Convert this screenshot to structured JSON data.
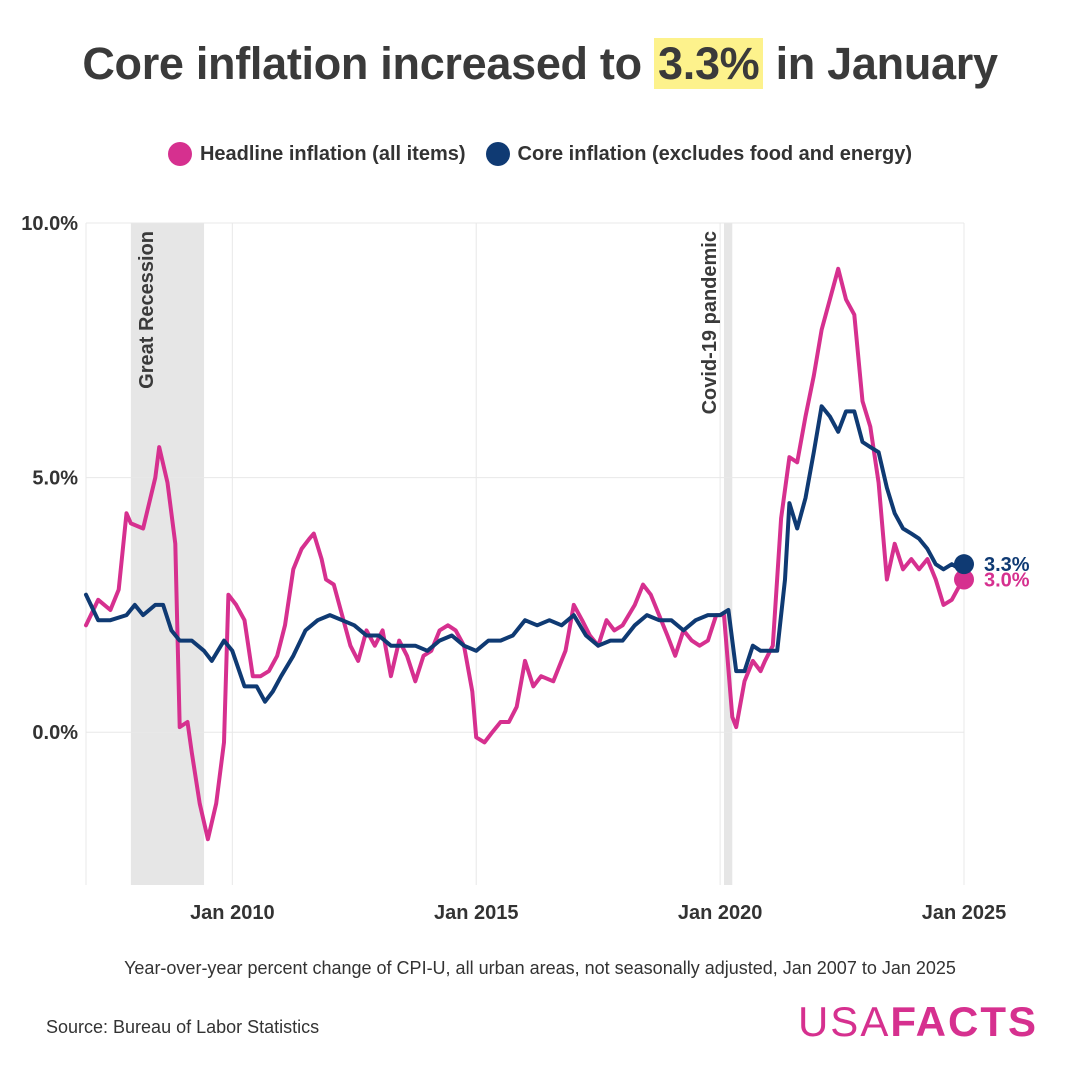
{
  "header": {
    "title_prefix": "Core inflation increased to",
    "title_highlight": "3.3%",
    "title_suffix": "in January"
  },
  "legend": {
    "headline_label": "Headline inflation (all items)",
    "core_label": "Core inflation (excludes food and energy)"
  },
  "colors": {
    "headline": "#d6308f",
    "core": "#0f3a73",
    "recession_band": "#e6e6e6",
    "grid": "#e8e8e8",
    "highlight": "#fdf28c"
  },
  "chart_data": {
    "type": "line",
    "title": "Core inflation increased to 3.3% in January",
    "xlabel": "",
    "ylabel": "",
    "x_range": [
      2007.0,
      2025.0
    ],
    "ylim": [
      -3.0,
      10.0
    ],
    "y_ticks": [
      0,
      5,
      10
    ],
    "y_tick_labels": [
      "0.0%",
      "5.0%",
      "10.0%"
    ],
    "x_ticks": [
      2010,
      2015,
      2020,
      2025
    ],
    "x_tick_labels": [
      "Jan 2010",
      "Jan 2015",
      "Jan 2020",
      "Jan 2025"
    ],
    "shaded_periods": [
      {
        "label": "Great Recession",
        "start": 2007.92,
        "end": 2009.42
      },
      {
        "label": "Covid-19 pandemic",
        "start": 2020.08,
        "end": 2020.25
      }
    ],
    "end_labels": {
      "core": "3.3%",
      "headline": "3.0%"
    },
    "series": [
      {
        "name": "Headline inflation (all items)",
        "key": "headline",
        "points": [
          [
            2007.0,
            2.1
          ],
          [
            2007.25,
            2.6
          ],
          [
            2007.5,
            2.4
          ],
          [
            2007.67,
            2.8
          ],
          [
            2007.83,
            4.3
          ],
          [
            2007.92,
            4.1
          ],
          [
            2008.17,
            4.0
          ],
          [
            2008.42,
            5.0
          ],
          [
            2008.5,
            5.6
          ],
          [
            2008.67,
            4.9
          ],
          [
            2008.83,
            3.7
          ],
          [
            2008.92,
            0.1
          ],
          [
            2009.08,
            0.2
          ],
          [
            2009.17,
            -0.4
          ],
          [
            2009.33,
            -1.4
          ],
          [
            2009.5,
            -2.1
          ],
          [
            2009.67,
            -1.4
          ],
          [
            2009.83,
            -0.2
          ],
          [
            2009.92,
            2.7
          ],
          [
            2010.08,
            2.5
          ],
          [
            2010.25,
            2.2
          ],
          [
            2010.42,
            1.1
          ],
          [
            2010.58,
            1.1
          ],
          [
            2010.75,
            1.2
          ],
          [
            2010.92,
            1.5
          ],
          [
            2011.08,
            2.1
          ],
          [
            2011.25,
            3.2
          ],
          [
            2011.42,
            3.6
          ],
          [
            2011.58,
            3.8
          ],
          [
            2011.67,
            3.9
          ],
          [
            2011.83,
            3.4
          ],
          [
            2011.92,
            3.0
          ],
          [
            2012.08,
            2.9
          ],
          [
            2012.25,
            2.3
          ],
          [
            2012.42,
            1.7
          ],
          [
            2012.58,
            1.4
          ],
          [
            2012.75,
            2.0
          ],
          [
            2012.92,
            1.7
          ],
          [
            2013.08,
            2.0
          ],
          [
            2013.25,
            1.1
          ],
          [
            2013.42,
            1.8
          ],
          [
            2013.58,
            1.5
          ],
          [
            2013.75,
            1.0
          ],
          [
            2013.92,
            1.5
          ],
          [
            2014.08,
            1.6
          ],
          [
            2014.25,
            2.0
          ],
          [
            2014.42,
            2.1
          ],
          [
            2014.58,
            2.0
          ],
          [
            2014.75,
            1.7
          ],
          [
            2014.92,
            0.8
          ],
          [
            2015.0,
            -0.1
          ],
          [
            2015.17,
            -0.2
          ],
          [
            2015.33,
            0.0
          ],
          [
            2015.5,
            0.2
          ],
          [
            2015.67,
            0.2
          ],
          [
            2015.83,
            0.5
          ],
          [
            2016.0,
            1.4
          ],
          [
            2016.17,
            0.9
          ],
          [
            2016.33,
            1.1
          ],
          [
            2016.58,
            1.0
          ],
          [
            2016.83,
            1.6
          ],
          [
            2017.0,
            2.5
          ],
          [
            2017.17,
            2.2
          ],
          [
            2017.33,
            1.9
          ],
          [
            2017.5,
            1.7
          ],
          [
            2017.67,
            2.2
          ],
          [
            2017.83,
            2.0
          ],
          [
            2018.0,
            2.1
          ],
          [
            2018.25,
            2.5
          ],
          [
            2018.42,
            2.9
          ],
          [
            2018.58,
            2.7
          ],
          [
            2018.75,
            2.3
          ],
          [
            2018.92,
            1.9
          ],
          [
            2019.08,
            1.5
          ],
          [
            2019.25,
            2.0
          ],
          [
            2019.42,
            1.8
          ],
          [
            2019.58,
            1.7
          ],
          [
            2019.75,
            1.8
          ],
          [
            2019.92,
            2.3
          ],
          [
            2020.08,
            2.3
          ],
          [
            2020.25,
            0.3
          ],
          [
            2020.33,
            0.1
          ],
          [
            2020.5,
            1.0
          ],
          [
            2020.67,
            1.4
          ],
          [
            2020.83,
            1.2
          ],
          [
            2020.92,
            1.4
          ],
          [
            2021.08,
            1.7
          ],
          [
            2021.25,
            4.2
          ],
          [
            2021.42,
            5.4
          ],
          [
            2021.58,
            5.3
          ],
          [
            2021.75,
            6.2
          ],
          [
            2021.92,
            7.0
          ],
          [
            2022.08,
            7.9
          ],
          [
            2022.25,
            8.5
          ],
          [
            2022.42,
            9.1
          ],
          [
            2022.58,
            8.5
          ],
          [
            2022.75,
            8.2
          ],
          [
            2022.92,
            6.5
          ],
          [
            2023.08,
            6.0
          ],
          [
            2023.25,
            4.9
          ],
          [
            2023.42,
            3.0
          ],
          [
            2023.58,
            3.7
          ],
          [
            2023.75,
            3.2
          ],
          [
            2023.92,
            3.4
          ],
          [
            2024.08,
            3.2
          ],
          [
            2024.25,
            3.4
          ],
          [
            2024.42,
            3.0
          ],
          [
            2024.58,
            2.5
          ],
          [
            2024.75,
            2.6
          ],
          [
            2024.92,
            2.9
          ],
          [
            2025.0,
            3.0
          ]
        ]
      },
      {
        "name": "Core inflation (excludes food and energy)",
        "key": "core",
        "points": [
          [
            2007.0,
            2.7
          ],
          [
            2007.25,
            2.2
          ],
          [
            2007.5,
            2.2
          ],
          [
            2007.83,
            2.3
          ],
          [
            2008.0,
            2.5
          ],
          [
            2008.17,
            2.3
          ],
          [
            2008.42,
            2.5
          ],
          [
            2008.58,
            2.5
          ],
          [
            2008.75,
            2.0
          ],
          [
            2008.92,
            1.8
          ],
          [
            2009.17,
            1.8
          ],
          [
            2009.42,
            1.6
          ],
          [
            2009.58,
            1.4
          ],
          [
            2009.83,
            1.8
          ],
          [
            2010.0,
            1.6
          ],
          [
            2010.25,
            0.9
          ],
          [
            2010.5,
            0.9
          ],
          [
            2010.67,
            0.6
          ],
          [
            2010.83,
            0.8
          ],
          [
            2011.0,
            1.1
          ],
          [
            2011.25,
            1.5
          ],
          [
            2011.5,
            2.0
          ],
          [
            2011.75,
            2.2
          ],
          [
            2012.0,
            2.3
          ],
          [
            2012.25,
            2.2
          ],
          [
            2012.5,
            2.1
          ],
          [
            2012.75,
            1.9
          ],
          [
            2013.0,
            1.9
          ],
          [
            2013.25,
            1.7
          ],
          [
            2013.5,
            1.7
          ],
          [
            2013.75,
            1.7
          ],
          [
            2014.0,
            1.6
          ],
          [
            2014.25,
            1.8
          ],
          [
            2014.5,
            1.9
          ],
          [
            2014.75,
            1.7
          ],
          [
            2015.0,
            1.6
          ],
          [
            2015.25,
            1.8
          ],
          [
            2015.5,
            1.8
          ],
          [
            2015.75,
            1.9
          ],
          [
            2016.0,
            2.2
          ],
          [
            2016.25,
            2.1
          ],
          [
            2016.5,
            2.2
          ],
          [
            2016.75,
            2.1
          ],
          [
            2017.0,
            2.3
          ],
          [
            2017.25,
            1.9
          ],
          [
            2017.5,
            1.7
          ],
          [
            2017.75,
            1.8
          ],
          [
            2018.0,
            1.8
          ],
          [
            2018.25,
            2.1
          ],
          [
            2018.5,
            2.3
          ],
          [
            2018.75,
            2.2
          ],
          [
            2019.0,
            2.2
          ],
          [
            2019.25,
            2.0
          ],
          [
            2019.5,
            2.2
          ],
          [
            2019.75,
            2.3
          ],
          [
            2020.0,
            2.3
          ],
          [
            2020.17,
            2.4
          ],
          [
            2020.33,
            1.2
          ],
          [
            2020.5,
            1.2
          ],
          [
            2020.67,
            1.7
          ],
          [
            2020.83,
            1.6
          ],
          [
            2021.0,
            1.6
          ],
          [
            2021.17,
            1.6
          ],
          [
            2021.33,
            3.0
          ],
          [
            2021.42,
            4.5
          ],
          [
            2021.58,
            4.0
          ],
          [
            2021.75,
            4.6
          ],
          [
            2021.92,
            5.5
          ],
          [
            2022.08,
            6.4
          ],
          [
            2022.25,
            6.2
          ],
          [
            2022.42,
            5.9
          ],
          [
            2022.58,
            6.3
          ],
          [
            2022.75,
            6.3
          ],
          [
            2022.92,
            5.7
          ],
          [
            2023.08,
            5.6
          ],
          [
            2023.25,
            5.5
          ],
          [
            2023.42,
            4.8
          ],
          [
            2023.58,
            4.3
          ],
          [
            2023.75,
            4.0
          ],
          [
            2023.92,
            3.9
          ],
          [
            2024.08,
            3.8
          ],
          [
            2024.25,
            3.6
          ],
          [
            2024.42,
            3.3
          ],
          [
            2024.58,
            3.2
          ],
          [
            2024.75,
            3.3
          ],
          [
            2024.92,
            3.2
          ],
          [
            2025.0,
            3.3
          ]
        ]
      }
    ]
  },
  "footer": {
    "subtitle": "Year-over-year percent change of CPI-U, all urban areas, not seasonally adjusted, Jan 2007 to Jan 2025",
    "source": "Source: Bureau of Labor Statistics",
    "logo_left": "USA",
    "logo_right": "FACTS"
  }
}
